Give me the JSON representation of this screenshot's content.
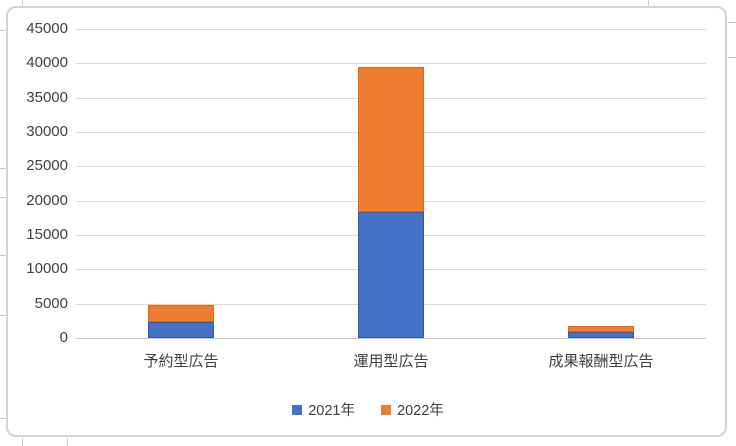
{
  "chart_data": {
    "type": "bar",
    "stacked": true,
    "title": "",
    "xlabel": "",
    "ylabel": "",
    "categories": [
      "予約型広告",
      "運用型広告",
      "成果報酬型広告"
    ],
    "series": [
      {
        "name": "2021年",
        "color": "#4472C4",
        "border_color": "#2c5aa8",
        "values": [
          2300,
          18400,
          900
        ]
      },
      {
        "name": "2022年",
        "color": "#ED7D31",
        "border_color": "#e06a13",
        "values": [
          2500,
          21100,
          900
        ]
      }
    ],
    "yticks": [
      0,
      5000,
      10000,
      15000,
      20000,
      25000,
      30000,
      35000,
      40000,
      45000
    ],
    "ylim": [
      0,
      45000
    ],
    "grid": true,
    "legend_position": "bottom",
    "colors": {
      "gridline": "#d9d9d9",
      "axis_line": "#c6c6c6",
      "label": "#404040",
      "frame_border": "#d3d3d3"
    }
  }
}
